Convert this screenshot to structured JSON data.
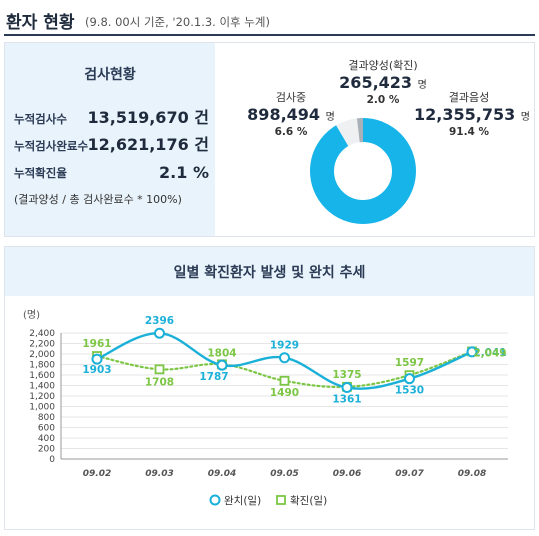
{
  "header": {
    "title": "환자 현황",
    "subtitle": "(9.8. 00시 기준, '20.1.3. 이후 누계)"
  },
  "summary": {
    "title": "검사현황",
    "rows": [
      {
        "label": "누적검사수",
        "value": "13,519,670 건"
      },
      {
        "label": "누적검사완료수",
        "value": "12,621,176 건"
      },
      {
        "label": "누적확진율",
        "value": "2.1 %"
      }
    ],
    "note": "(결과양성 / 총 검사완료수 * 100%)"
  },
  "donut": {
    "unit": "명",
    "positive": {
      "name": "결과양성(확진)",
      "value": "265,423",
      "percent": "2.0 %",
      "fraction": 0.02
    },
    "testing": {
      "name": "검사중",
      "value": "898,494",
      "percent": "6.6 %",
      "fraction": 0.066
    },
    "negative": {
      "name": "결과음성",
      "value": "12,355,753",
      "percent": "91.4 %",
      "fraction": 0.914
    },
    "colors": {
      "negative": "#17b4e9",
      "testing": "#eef0f2",
      "positive": "#a9b0b7"
    }
  },
  "chart_title": "일별 확진환자 발생 및 완치 추세",
  "chart_data": {
    "type": "line",
    "ylabel": "(명)",
    "ylim": [
      0,
      2400
    ],
    "yticks": [
      0,
      200,
      400,
      600,
      800,
      1000,
      1200,
      1400,
      1600,
      1800,
      2000,
      2200,
      2400
    ],
    "ytick_labels": [
      "0",
      "200",
      "400",
      "600",
      "800",
      "1,000",
      "1,200",
      "1,400",
      "1,600",
      "1,800",
      "2,000",
      "2,200",
      "2,400"
    ],
    "categories": [
      "09.02",
      "09.03",
      "09.04",
      "09.05",
      "09.06",
      "09.07",
      "09.08"
    ],
    "grid": true,
    "legend": "bottom",
    "series": [
      {
        "name": "완치(일)",
        "values": [
          1903,
          2396,
          1787,
          1929,
          1361,
          1530,
          2041
        ],
        "labels": [
          "1903",
          "2396",
          "1787",
          "1929",
          "1361",
          "1530",
          "2,041"
        ],
        "color": "#1bb0d8",
        "style": "solid",
        "marker": "circle"
      },
      {
        "name": "확진(일)",
        "values": [
          1961,
          1708,
          1804,
          1490,
          1375,
          1597,
          2049
        ],
        "labels": [
          "1961",
          "1708",
          "1804",
          "1490",
          "1375",
          "1597",
          "2,049"
        ],
        "color": "#7cc644",
        "style": "dotted",
        "marker": "square"
      }
    ]
  }
}
